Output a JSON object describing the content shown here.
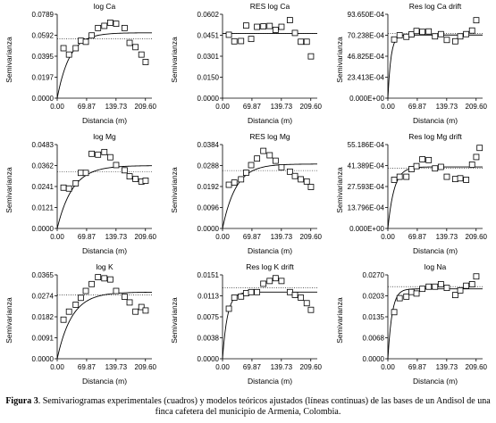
{
  "caption": {
    "label": "Figura 3",
    "text": ". Semivariogramas experimentales (cuadros) y modelos teóricos ajustados (líneas continuas) de las bases de un Andisol de una finca cafetera del municipio de Armenia, Colombia."
  },
  "chart_data": [
    {
      "type": "scatter",
      "title": "log Ca",
      "xlabel": "Distancia (m)",
      "ylabel": "Semivarianza",
      "xlim": [
        0,
        225
      ],
      "ylim": [
        0,
        0.0789
      ],
      "xticks": [
        "0.00",
        "69.87",
        "139.73",
        "209.60"
      ],
      "yticks": [
        "0.0000",
        "0.0197",
        "0.0395",
        "0.0592",
        "0.0789"
      ],
      "points": [
        [
          15,
          0.047
        ],
        [
          28,
          0.041
        ],
        [
          44,
          0.047
        ],
        [
          56,
          0.054
        ],
        [
          68,
          0.053
        ],
        [
          82,
          0.059
        ],
        [
          97,
          0.066
        ],
        [
          112,
          0.068
        ],
        [
          126,
          0.071
        ],
        [
          140,
          0.07
        ],
        [
          160,
          0.066
        ],
        [
          172,
          0.052
        ],
        [
          186,
          0.048
        ],
        [
          200,
          0.041
        ],
        [
          210,
          0.034
        ]
      ],
      "model": {
        "nugget": 0.0,
        "sill": 0.0615,
        "range": 90
      },
      "ref_line": 0.056
    },
    {
      "type": "scatter",
      "title": "RES log Ca",
      "xlabel": "Distancia (m)",
      "ylabel": "Semivarianza",
      "xlim": [
        0,
        225
      ],
      "ylim": [
        0,
        0.0602
      ],
      "xticks": [
        "0.00",
        "69.87",
        "139.73",
        "209.60"
      ],
      "yticks": [
        "0.0000",
        "0.0150",
        "0.0301",
        "0.0451",
        "0.0602"
      ],
      "points": [
        [
          15,
          0.0455
        ],
        [
          28,
          0.0408
        ],
        [
          44,
          0.041
        ],
        [
          56,
          0.0521
        ],
        [
          68,
          0.0425
        ],
        [
          82,
          0.0512
        ],
        [
          97,
          0.0515
        ],
        [
          112,
          0.0518
        ],
        [
          126,
          0.049
        ],
        [
          140,
          0.0512
        ],
        [
          160,
          0.056
        ],
        [
          172,
          0.0468
        ],
        [
          186,
          0.0405
        ],
        [
          200,
          0.0405
        ],
        [
          210,
          0.03
        ]
      ],
      "model": {
        "nugget": 0.0464,
        "sill": 0.0464,
        "range": 1
      },
      "ref_line": 0.0464
    },
    {
      "type": "scatter",
      "title": "Res log Ca drift",
      "xlabel": "Distancia (m)",
      "ylabel": "Semivarianza",
      "xlim": [
        0,
        225
      ],
      "ylim": [
        0,
        0.009365
      ],
      "xticks": [
        "0.00",
        "69.87",
        "139.73",
        "209.60"
      ],
      "yticks": [
        "0.000E+00",
        "23.413E-04",
        "46.825E-04",
        "70.238E-04",
        "93.650E-04"
      ],
      "points": [
        [
          15,
          0.00655
        ],
        [
          28,
          0.00702
        ],
        [
          44,
          0.00685
        ],
        [
          56,
          0.00712
        ],
        [
          68,
          0.0075
        ],
        [
          82,
          0.0074
        ],
        [
          97,
          0.00745
        ],
        [
          112,
          0.0069
        ],
        [
          126,
          0.00715
        ],
        [
          140,
          0.0065
        ],
        [
          160,
          0.00635
        ],
        [
          172,
          0.0069
        ],
        [
          186,
          0.00715
        ],
        [
          200,
          0.00755
        ],
        [
          210,
          0.0087
        ]
      ],
      "model": {
        "nugget": 0.0,
        "sill": 0.00705,
        "range": 22
      },
      "ref_line": 0.00722
    },
    {
      "type": "scatter",
      "title": "log Mg",
      "xlabel": "Distancia (m)",
      "ylabel": "Semivarianza",
      "xlim": [
        0,
        225
      ],
      "ylim": [
        0,
        0.0483
      ],
      "xticks": [
        "0.00",
        "69.87",
        "139.73",
        "209.60"
      ],
      "yticks": [
        "0.0000",
        "0.0121",
        "0.0241",
        "0.0362",
        "0.0483"
      ],
      "points": [
        [
          15,
          0.0235
        ],
        [
          28,
          0.023
        ],
        [
          44,
          0.026
        ],
        [
          56,
          0.032
        ],
        [
          68,
          0.032
        ],
        [
          82,
          0.043
        ],
        [
          97,
          0.0425
        ],
        [
          112,
          0.044
        ],
        [
          126,
          0.041
        ],
        [
          140,
          0.0365
        ],
        [
          160,
          0.0335
        ],
        [
          172,
          0.03
        ],
        [
          186,
          0.0285
        ],
        [
          200,
          0.027
        ],
        [
          210,
          0.0275
        ]
      ],
      "model": {
        "nugget": 0.0,
        "sill": 0.0362,
        "range": 110
      },
      "ref_line": 0.0325
    },
    {
      "type": "scatter",
      "title": "RES log Mg",
      "xlabel": "Distancia (m)",
      "ylabel": "Semivarianza",
      "xlim": [
        0,
        225
      ],
      "ylim": [
        0,
        0.0384
      ],
      "xticks": [
        "0.00",
        "69.87",
        "139.73",
        "209.60"
      ],
      "yticks": [
        "0.0000",
        "0.0096",
        "0.0192",
        "0.0288",
        "0.0384"
      ],
      "points": [
        [
          15,
          0.02
        ],
        [
          28,
          0.021
        ],
        [
          44,
          0.0225
        ],
        [
          56,
          0.0255
        ],
        [
          68,
          0.029
        ],
        [
          82,
          0.032
        ],
        [
          97,
          0.0355
        ],
        [
          112,
          0.0335
        ],
        [
          126,
          0.031
        ],
        [
          140,
          0.028
        ],
        [
          160,
          0.026
        ],
        [
          172,
          0.024
        ],
        [
          186,
          0.0225
        ],
        [
          200,
          0.0215
        ],
        [
          210,
          0.019
        ]
      ],
      "model": {
        "nugget": 0.0,
        "sill": 0.0295,
        "range": 95
      },
      "ref_line": 0.0265
    },
    {
      "type": "scatter",
      "title": "Res log Mg drift",
      "xlabel": "Distancia (m)",
      "ylabel": "Semivarianza",
      "xlim": [
        0,
        225
      ],
      "ylim": [
        0,
        0.0055186
      ],
      "xticks": [
        "0.00",
        "69.87",
        "139.73",
        "209.60"
      ],
      "yticks": [
        "0.000E+00",
        "13.796E-04",
        "27.593E-04",
        "41.389E-04",
        "55.186E-04"
      ],
      "points": [
        [
          15,
          0.0032
        ],
        [
          28,
          0.0034
        ],
        [
          44,
          0.0034
        ],
        [
          56,
          0.0039
        ],
        [
          68,
          0.0041
        ],
        [
          82,
          0.00455
        ],
        [
          97,
          0.0045
        ],
        [
          112,
          0.00395
        ],
        [
          126,
          0.00405
        ],
        [
          140,
          0.0034
        ],
        [
          160,
          0.00325
        ],
        [
          172,
          0.0033
        ],
        [
          186,
          0.0032
        ],
        [
          200,
          0.0042
        ],
        [
          210,
          0.0047
        ],
        [
          218,
          0.0053
        ]
      ],
      "model": {
        "nugget": 0.0,
        "sill": 0.00405,
        "range": 45
      },
      "ref_line": 0.00395
    },
    {
      "type": "scatter",
      "title": "log K",
      "xlabel": "Distancia (m)",
      "ylabel": "Semivarianza",
      "xlim": [
        0,
        225
      ],
      "ylim": [
        0,
        0.0365
      ],
      "xticks": [
        "0.00",
        "69.87",
        "139.73",
        "209.60"
      ],
      "yticks": [
        "0.0000",
        "0.0091",
        "0.0182",
        "0.0274",
        "0.0365"
      ],
      "points": [
        [
          15,
          0.017
        ],
        [
          28,
          0.0205
        ],
        [
          44,
          0.0235
        ],
        [
          56,
          0.0265
        ],
        [
          68,
          0.0295
        ],
        [
          82,
          0.0325
        ],
        [
          97,
          0.0355
        ],
        [
          112,
          0.035
        ],
        [
          126,
          0.0345
        ],
        [
          140,
          0.0295
        ],
        [
          160,
          0.027
        ],
        [
          172,
          0.0245
        ],
        [
          186,
          0.0205
        ],
        [
          200,
          0.0225
        ],
        [
          210,
          0.021
        ]
      ],
      "model": {
        "nugget": 0.0,
        "sill": 0.029,
        "range": 105
      },
      "ref_line": 0.0278
    },
    {
      "type": "scatter",
      "title": "Res log K drift",
      "xlabel": "Distancia (m)",
      "ylabel": "Semivarianza",
      "xlim": [
        0,
        225
      ],
      "ylim": [
        0,
        0.0151
      ],
      "xticks": [
        "0.00",
        "69.87",
        "139.73",
        "209.60"
      ],
      "yticks": [
        "0.0000",
        "0.0038",
        "0.0075",
        "0.0113",
        "0.0151"
      ],
      "points": [
        [
          15,
          0.009
        ],
        [
          28,
          0.011
        ],
        [
          44,
          0.0112
        ],
        [
          56,
          0.0118
        ],
        [
          68,
          0.012
        ],
        [
          82,
          0.012
        ],
        [
          97,
          0.0135
        ],
        [
          112,
          0.014
        ],
        [
          126,
          0.0145
        ],
        [
          140,
          0.014
        ],
        [
          160,
          0.012
        ],
        [
          172,
          0.0115
        ],
        [
          186,
          0.011
        ],
        [
          200,
          0.01
        ],
        [
          210,
          0.0088
        ]
      ],
      "model": {
        "nugget": 0.0,
        "sill": 0.012,
        "range": 35
      },
      "ref_line": 0.0128
    },
    {
      "type": "scatter",
      "title": "log Na",
      "xlabel": "Distancia (m)",
      "ylabel": "Semivarianza",
      "xlim": [
        0,
        225
      ],
      "ylim": [
        0,
        0.027
      ],
      "xticks": [
        "0.00",
        "69.87",
        "139.73",
        "209.60"
      ],
      "yticks": [
        "0.0000",
        "0.0068",
        "0.0135",
        "0.0203",
        "0.0270"
      ],
      "points": [
        [
          15,
          0.015
        ],
        [
          28,
          0.0195
        ],
        [
          44,
          0.02
        ],
        [
          56,
          0.0215
        ],
        [
          68,
          0.021
        ],
        [
          82,
          0.0225
        ],
        [
          97,
          0.0232
        ],
        [
          112,
          0.0232
        ],
        [
          126,
          0.024
        ],
        [
          140,
          0.0228
        ],
        [
          160,
          0.0205
        ],
        [
          172,
          0.022
        ],
        [
          186,
          0.0235
        ],
        [
          200,
          0.024
        ],
        [
          210,
          0.0265
        ]
      ],
      "model": {
        "nugget": 0.0,
        "sill": 0.0225,
        "range": 30
      },
      "ref_line": 0.0232
    }
  ]
}
